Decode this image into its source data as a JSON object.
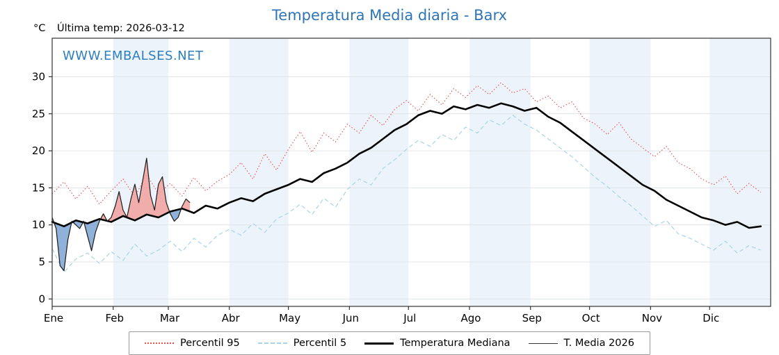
{
  "page": {
    "title": "Temperatura Media diaria - Barx",
    "unit_label": "°C",
    "last_temp_label": "Última temp: 2026-03-12",
    "watermark": "WWW.EMBALSES.NET"
  },
  "colors": {
    "title": "#2e75b6",
    "watermark": "#2b7fc1",
    "band": "#edf3fa",
    "grid": "#e0e4e8",
    "axis": "#333333"
  },
  "legend": {
    "items": [
      {
        "label": "Percentil 95"
      },
      {
        "label": "Percentil 5"
      },
      {
        "label": "Temperatura Mediana"
      },
      {
        "label": "T. Media 2026"
      }
    ]
  },
  "chart_data": {
    "type": "line",
    "title": "Temperatura Media diaria - Barx",
    "ylabel": "°C",
    "x_unit": "day_of_year",
    "x_max": 366,
    "ylim": [
      -1,
      35.2
    ],
    "yticks": [
      0,
      5,
      10,
      15,
      20,
      25,
      30
    ],
    "grid": true,
    "legend_position": "bottom",
    "months": [
      {
        "label": "Ene",
        "start_day": 1
      },
      {
        "label": "Feb",
        "start_day": 32
      },
      {
        "label": "Mar",
        "start_day": 60
      },
      {
        "label": "Abr",
        "start_day": 91
      },
      {
        "label": "May",
        "start_day": 121
      },
      {
        "label": "Jun",
        "start_day": 152
      },
      {
        "label": "Jul",
        "start_day": 182
      },
      {
        "label": "Ago",
        "start_day": 213
      },
      {
        "label": "Sep",
        "start_day": 244
      },
      {
        "label": "Oct",
        "start_day": 274
      },
      {
        "label": "Nov",
        "start_day": 305
      },
      {
        "label": "Dic",
        "start_day": 335
      }
    ],
    "x_days": [
      1,
      7,
      13,
      19,
      25,
      31,
      37,
      43,
      49,
      55,
      61,
      67,
      73,
      79,
      85,
      91,
      97,
      103,
      109,
      115,
      121,
      127,
      133,
      139,
      145,
      151,
      157,
      163,
      169,
      175,
      181,
      187,
      193,
      199,
      205,
      211,
      217,
      223,
      229,
      235,
      241,
      247,
      253,
      259,
      265,
      271,
      277,
      283,
      289,
      295,
      301,
      307,
      313,
      319,
      325,
      331,
      337,
      343,
      349,
      355,
      361
    ],
    "series": [
      {
        "name": "Percentil 95",
        "style": "dotted",
        "color": "#e05050",
        "values": [
          14.2,
          15.8,
          13.5,
          15.2,
          12.8,
          14.6,
          16.2,
          13.8,
          16.8,
          14.2,
          15.6,
          13.9,
          16.4,
          14.6,
          15.9,
          16.8,
          18.4,
          16.2,
          19.6,
          17.4,
          20.2,
          22.6,
          19.8,
          22.4,
          21.2,
          23.6,
          22.4,
          24.8,
          23.4,
          25.6,
          26.8,
          25.4,
          27.6,
          26.2,
          28.4,
          27.2,
          28.8,
          27.6,
          29.2,
          27.8,
          28.4,
          26.6,
          27.4,
          25.8,
          26.6,
          24.4,
          23.6,
          22.2,
          23.8,
          21.6,
          20.4,
          19.2,
          20.6,
          18.4,
          17.6,
          16.2,
          15.4,
          16.6,
          14.2,
          15.6,
          14.4
        ]
      },
      {
        "name": "Percentil 5",
        "style": "dashed",
        "color": "#a8d4e4",
        "values": [
          6.8,
          3.6,
          5.4,
          6.2,
          4.8,
          6.4,
          5.2,
          7.4,
          5.8,
          6.6,
          7.8,
          6.4,
          8.2,
          7.0,
          8.6,
          9.4,
          8.6,
          10.2,
          9.0,
          10.8,
          11.6,
          12.8,
          11.4,
          13.6,
          12.4,
          14.8,
          16.2,
          15.4,
          17.6,
          18.8,
          20.2,
          21.4,
          20.6,
          22.2,
          21.4,
          23.2,
          22.4,
          24.2,
          23.4,
          24.8,
          23.6,
          22.8,
          21.6,
          20.4,
          19.2,
          17.8,
          16.4,
          15.2,
          13.8,
          12.6,
          11.2,
          9.8,
          10.6,
          8.8,
          8.2,
          7.4,
          6.6,
          7.8,
          6.2,
          7.2,
          6.6
        ]
      },
      {
        "name": "Temperatura Mediana",
        "style": "solid-thick",
        "color": "#000000",
        "values": [
          10.4,
          9.8,
          10.6,
          10.2,
          10.8,
          10.4,
          11.2,
          10.6,
          11.4,
          11.0,
          11.8,
          12.2,
          11.6,
          12.6,
          12.2,
          13.0,
          13.6,
          13.2,
          14.2,
          14.8,
          15.4,
          16.2,
          15.8,
          17.0,
          17.6,
          18.4,
          19.6,
          20.4,
          21.6,
          22.8,
          23.6,
          24.8,
          25.4,
          25.0,
          26.0,
          25.6,
          26.2,
          25.8,
          26.4,
          26.0,
          25.4,
          25.8,
          24.6,
          23.8,
          22.6,
          21.4,
          20.2,
          19.0,
          17.8,
          16.6,
          15.4,
          14.6,
          13.4,
          12.6,
          11.8,
          11.0,
          10.6,
          10.0,
          10.4,
          9.6,
          9.8
        ]
      },
      {
        "name": "T. Media 2026",
        "style": "solid-thin",
        "color": "#1a1a1a",
        "fill_vs": "Temperatura Mediana",
        "fill_above_color": "rgba(240,160,156,0.85)",
        "fill_below_color": "rgba(125,165,210,0.85)",
        "x": [
          1,
          3,
          5,
          7,
          9,
          11,
          13,
          15,
          17,
          19,
          21,
          23,
          25,
          27,
          29,
          31,
          33,
          35,
          37,
          39,
          41,
          43,
          45,
          47,
          49,
          51,
          53,
          55,
          57,
          59,
          61,
          63,
          65,
          67,
          69,
          71
        ],
        "values": [
          11.0,
          9.5,
          4.5,
          3.8,
          8.0,
          10.5,
          10.0,
          9.5,
          10.5,
          8.5,
          6.5,
          9.0,
          10.5,
          11.5,
          10.5,
          11.0,
          12.5,
          14.5,
          12.0,
          11.0,
          13.5,
          15.5,
          13.0,
          16.0,
          19.0,
          14.0,
          12.0,
          15.5,
          16.5,
          13.0,
          11.5,
          10.5,
          11.0,
          12.5,
          13.5,
          13.0
        ]
      }
    ]
  }
}
